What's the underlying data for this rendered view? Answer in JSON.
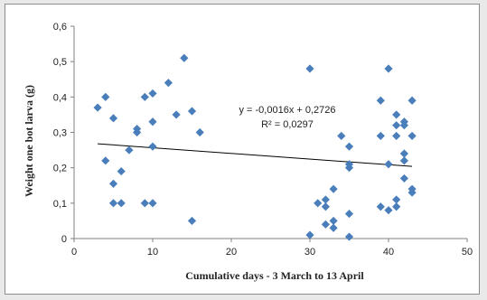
{
  "chart_data": {
    "type": "scatter",
    "xlabel": "Cumulative days - 3 March to 13 April",
    "ylabel": "Weight one bot larva (g)",
    "xlim": [
      0,
      50
    ],
    "ylim": [
      0,
      0.6
    ],
    "xticks": [
      "0",
      "10",
      "20",
      "30",
      "40",
      "50"
    ],
    "yticks": [
      "0",
      "0,1",
      "0,2",
      "0,3",
      "0,4",
      "0,5",
      "0,6"
    ],
    "grid": false,
    "marker_color": "#4a7ebb",
    "trendline": {
      "slope": -0.0016,
      "intercept": 0.2726,
      "x_range": [
        3,
        43
      ],
      "equation": "y = -0,0016x + 0,2726",
      "r_squared": "R² = 0,0297"
    },
    "points": [
      {
        "x": 3,
        "y": 0.37
      },
      {
        "x": 4,
        "y": 0.4
      },
      {
        "x": 4,
        "y": 0.22
      },
      {
        "x": 5,
        "y": 0.34
      },
      {
        "x": 5,
        "y": 0.155
      },
      {
        "x": 5,
        "y": 0.1
      },
      {
        "x": 6,
        "y": 0.19
      },
      {
        "x": 6,
        "y": 0.1
      },
      {
        "x": 7,
        "y": 0.25
      },
      {
        "x": 8,
        "y": 0.31
      },
      {
        "x": 8,
        "y": 0.3
      },
      {
        "x": 9,
        "y": 0.4
      },
      {
        "x": 9,
        "y": 0.1
      },
      {
        "x": 10,
        "y": 0.41
      },
      {
        "x": 10,
        "y": 0.33
      },
      {
        "x": 10,
        "y": 0.26
      },
      {
        "x": 10,
        "y": 0.1
      },
      {
        "x": 12,
        "y": 0.44
      },
      {
        "x": 13,
        "y": 0.35
      },
      {
        "x": 14,
        "y": 0.51
      },
      {
        "x": 15,
        "y": 0.36
      },
      {
        "x": 15,
        "y": 0.05
      },
      {
        "x": 16,
        "y": 0.3
      },
      {
        "x": 30,
        "y": 0.48
      },
      {
        "x": 30,
        "y": 0.01
      },
      {
        "x": 31,
        "y": 0.1
      },
      {
        "x": 32,
        "y": 0.11
      },
      {
        "x": 32,
        "y": 0.09
      },
      {
        "x": 32,
        "y": 0.04
      },
      {
        "x": 33,
        "y": 0.14
      },
      {
        "x": 33,
        "y": 0.05
      },
      {
        "x": 33,
        "y": 0.03
      },
      {
        "x": 34,
        "y": 0.29
      },
      {
        "x": 35,
        "y": 0.26
      },
      {
        "x": 35,
        "y": 0.21
      },
      {
        "x": 35,
        "y": 0.2
      },
      {
        "x": 35,
        "y": 0.07
      },
      {
        "x": 35,
        "y": 0.005
      },
      {
        "x": 39,
        "y": 0.39
      },
      {
        "x": 39,
        "y": 0.29
      },
      {
        "x": 39,
        "y": 0.09
      },
      {
        "x": 40,
        "y": 0.48
      },
      {
        "x": 40,
        "y": 0.21
      },
      {
        "x": 40,
        "y": 0.08
      },
      {
        "x": 41,
        "y": 0.35
      },
      {
        "x": 41,
        "y": 0.32
      },
      {
        "x": 41,
        "y": 0.29
      },
      {
        "x": 41,
        "y": 0.11
      },
      {
        "x": 41,
        "y": 0.09
      },
      {
        "x": 42,
        "y": 0.33
      },
      {
        "x": 42,
        "y": 0.32
      },
      {
        "x": 42,
        "y": 0.24
      },
      {
        "x": 42,
        "y": 0.22
      },
      {
        "x": 42,
        "y": 0.17
      },
      {
        "x": 43,
        "y": 0.39
      },
      {
        "x": 43,
        "y": 0.29
      },
      {
        "x": 43,
        "y": 0.14
      },
      {
        "x": 43,
        "y": 0.13
      }
    ]
  }
}
